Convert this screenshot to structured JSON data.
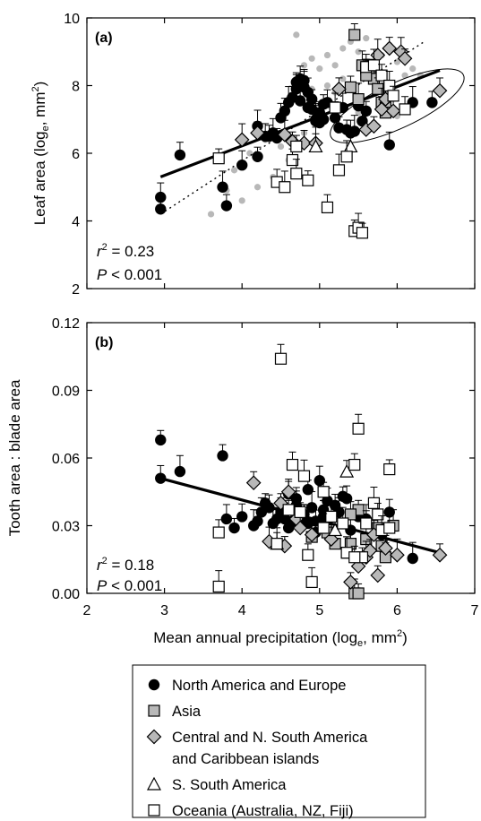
{
  "chart_data": [
    {
      "type": "scatter",
      "panel_label": "(a)",
      "ylabel": "Leaf area (log",
      "ylabel_sub": "e",
      "ylabel_unit": ", mm",
      "ylabel_sup": "2",
      "xlim": [
        2,
        7
      ],
      "ylim": [
        2,
        10
      ],
      "yticks": [
        "2",
        "4",
        "6",
        "8",
        "10"
      ],
      "stats": {
        "r_label": "r",
        "r_sup": "2",
        "r_value": " = 0.23",
        "p_label": "P",
        "p_value": " < 0.001"
      },
      "regression": {
        "x": [
          2.95,
          6.55
        ],
        "y": [
          5.3,
          8.45
        ]
      },
      "dotted_line": {
        "x": [
          2.95,
          6.35
        ],
        "y": [
          4.2,
          9.3
        ]
      },
      "ellipse": {
        "cx": 6.0,
        "cy": 7.4,
        "rx_data": 0.65,
        "ry_data": 1.2,
        "angle_deg": -25
      },
      "series": [
        {
          "name": "Background",
          "marker": "small-grey",
          "x": [
            3.6,
            3.9,
            4.1,
            4.3,
            4.5,
            4.6,
            4.7,
            4.8,
            4.9,
            5.0,
            5.1,
            5.2,
            5.3,
            5.4,
            5.5,
            5.6,
            5.7,
            5.8,
            5.9,
            6.0,
            6.1,
            6.2,
            4.4,
            4.6,
            4.8,
            5.0,
            5.2,
            5.5,
            5.7,
            5.9,
            4.2,
            4.5,
            4.9,
            5.3,
            5.8,
            6.0,
            4.0,
            3.8,
            4.7,
            5.1,
            5.6,
            6.3
          ],
          "y": [
            4.2,
            5.5,
            6.0,
            6.4,
            7.0,
            7.6,
            8.2,
            8.6,
            8.8,
            8.5,
            8.0,
            8.6,
            9.1,
            9.3,
            9.0,
            8.7,
            8.4,
            8.9,
            9.2,
            8.7,
            8.3,
            8.5,
            5.3,
            5.8,
            6.6,
            7.4,
            7.8,
            7.2,
            6.9,
            7.6,
            5.0,
            6.2,
            7.9,
            8.2,
            8.0,
            7.1,
            4.6,
            4.9,
            9.5,
            8.9,
            9.4,
            8.3
          ]
        },
        {
          "name": "North America and Europe",
          "marker": "circle",
          "x": [
            2.95,
            2.95,
            3.2,
            3.75,
            3.8,
            4.0,
            4.2,
            4.3,
            4.2,
            4.35,
            4.4,
            4.45,
            4.55,
            4.6,
            4.65,
            4.7,
            4.7,
            4.75,
            4.8,
            4.8,
            4.85,
            4.9,
            4.9,
            4.95,
            5.0,
            5.0,
            5.05,
            5.1,
            5.2,
            5.25,
            5.3,
            5.35,
            5.4,
            5.45,
            5.5,
            5.55,
            5.6,
            5.9,
            6.2,
            6.45,
            4.5,
            4.75,
            4.85,
            4.95,
            5.05
          ],
          "y": [
            4.7,
            4.35,
            5.95,
            5.0,
            4.45,
            5.65,
            5.9,
            6.5,
            6.8,
            6.5,
            6.6,
            6.45,
            7.25,
            7.5,
            7.65,
            7.9,
            8.1,
            8.2,
            7.95,
            8.15,
            7.8,
            7.6,
            7.3,
            7.0,
            7.2,
            6.9,
            7.45,
            7.5,
            7.05,
            6.75,
            7.35,
            6.7,
            6.6,
            6.65,
            7.4,
            6.95,
            7.25,
            6.25,
            7.5,
            7.5,
            7.05,
            7.55,
            7.35,
            6.95,
            7.0
          ]
        },
        {
          "name": "Asia",
          "marker": "square-grey",
          "x": [
            5.45,
            5.55,
            5.6,
            5.65,
            5.7,
            5.75,
            5.8,
            5.85,
            5.9,
            5.5,
            5.4,
            5.6,
            5.85
          ],
          "y": [
            9.5,
            8.6,
            8.5,
            8.4,
            8.2,
            7.9,
            7.5,
            7.35,
            7.7,
            7.6,
            7.95,
            8.3,
            7.2
          ]
        },
        {
          "name": "Central and N. South America and Caribbean islands",
          "marker": "diamond",
          "x": [
            4.0,
            4.2,
            4.55,
            4.65,
            4.8,
            4.95,
            5.25,
            5.6,
            5.7,
            5.8,
            5.85,
            5.95,
            6.05,
            6.1,
            6.55,
            5.75,
            5.9
          ],
          "y": [
            6.4,
            6.6,
            6.55,
            6.35,
            6.3,
            6.3,
            7.9,
            6.7,
            6.8,
            7.3,
            7.6,
            7.25,
            9.0,
            8.8,
            7.85,
            8.9,
            9.1
          ]
        },
        {
          "name": "S. South America",
          "marker": "triangle",
          "x": [
            4.95,
            5.4
          ],
          "y": [
            6.2,
            6.2
          ]
        },
        {
          "name": "Oceania (Australia, NZ, Fiji)",
          "marker": "square",
          "x": [
            3.7,
            4.45,
            4.55,
            4.65,
            4.7,
            4.85,
            5.1,
            5.25,
            5.45,
            5.5,
            5.55,
            5.6,
            5.7,
            5.8,
            5.9,
            5.95,
            6.1,
            5.35,
            4.7,
            5.2
          ],
          "y": [
            5.85,
            5.15,
            5.0,
            5.8,
            5.4,
            5.2,
            4.4,
            5.5,
            3.7,
            3.8,
            3.65,
            8.55,
            8.6,
            8.3,
            8.0,
            7.7,
            7.3,
            5.9,
            6.2,
            7.35
          ]
        }
      ]
    },
    {
      "type": "scatter",
      "panel_label": "(b)",
      "ylabel": "Tooth area : blade area",
      "xlabel": "Mean annual precipitation (log",
      "xlabel_sub": "e",
      "xlabel_unit": ", mm",
      "xlabel_sup": "2",
      "xlim": [
        2,
        7
      ],
      "ylim": [
        0,
        0.12
      ],
      "xticks": [
        "2",
        "3",
        "4",
        "5",
        "6",
        "7"
      ],
      "yticks": [
        "0.00",
        "0.03",
        "0.06",
        "0.09",
        "0.12"
      ],
      "stats": {
        "r_label": "r",
        "r_sup": "2",
        "r_value": " = 0.18",
        "p_label": "P",
        "p_value": " < 0.001"
      },
      "regression": {
        "x": [
          2.95,
          6.55
        ],
        "y": [
          0.051,
          0.018
        ]
      },
      "series": [
        {
          "name": "North America and Europe",
          "marker": "circle",
          "x": [
            2.95,
            2.95,
            3.2,
            3.75,
            3.8,
            3.9,
            4.0,
            4.15,
            4.2,
            4.25,
            4.3,
            4.35,
            4.4,
            4.45,
            4.5,
            4.55,
            4.6,
            4.65,
            4.7,
            4.75,
            4.8,
            4.85,
            4.9,
            4.95,
            5.0,
            5.05,
            5.1,
            5.15,
            5.2,
            5.25,
            5.3,
            5.35,
            5.4,
            5.5,
            5.6,
            5.8,
            5.9,
            6.2,
            4.6,
            4.7,
            4.85,
            4.95,
            5.05,
            4.65,
            4.8
          ],
          "y": [
            0.068,
            0.051,
            0.054,
            0.061,
            0.033,
            0.029,
            0.034,
            0.03,
            0.032,
            0.036,
            0.04,
            0.038,
            0.031,
            0.033,
            0.036,
            0.033,
            0.044,
            0.032,
            0.042,
            0.03,
            0.035,
            0.031,
            0.038,
            0.032,
            0.05,
            0.037,
            0.041,
            0.027,
            0.039,
            0.036,
            0.043,
            0.042,
            0.028,
            0.034,
            0.033,
            0.026,
            0.036,
            0.0155,
            0.029,
            0.039,
            0.046,
            0.027,
            0.034,
            0.037,
            0.033
          ]
        },
        {
          "name": "Asia",
          "marker": "square-grey",
          "x": [
            4.9,
            5.1,
            5.2,
            5.35,
            5.4,
            5.45,
            5.5,
            5.6,
            5.75,
            5.8,
            5.85,
            5.5,
            5.4,
            5.95
          ],
          "y": [
            0.025,
            0.027,
            0.022,
            0.018,
            0.022,
            0.0,
            0.0,
            0.024,
            0.029,
            0.021,
            0.016,
            0.037,
            0.035,
            0.03
          ]
        },
        {
          "name": "Central and N. South America and Caribbean islands",
          "marker": "diamond",
          "x": [
            4.15,
            4.35,
            4.55,
            4.6,
            4.7,
            4.9,
            5.15,
            5.4,
            5.5,
            5.6,
            5.65,
            5.7,
            5.75,
            5.85,
            6.0,
            6.55,
            4.75,
            4.5
          ],
          "y": [
            0.049,
            0.023,
            0.021,
            0.045,
            0.033,
            0.026,
            0.024,
            0.005,
            0.012,
            0.016,
            0.019,
            0.026,
            0.008,
            0.02,
            0.017,
            0.017,
            0.029,
            0.04
          ]
        },
        {
          "name": "S. South America",
          "marker": "triangle",
          "x": [
            4.45,
            5.35,
            5.2
          ],
          "y": [
            0.022,
            0.054,
            0.028
          ]
        },
        {
          "name": "Oceania (Australia, NZ, Fiji)",
          "marker": "square",
          "x": [
            3.7,
            3.7,
            4.45,
            4.5,
            4.6,
            4.65,
            4.8,
            4.85,
            4.9,
            5.05,
            5.15,
            5.35,
            5.45,
            5.5,
            5.55,
            5.6,
            5.7,
            5.75,
            5.8,
            5.9,
            5.9,
            5.3,
            5.45,
            5.05,
            4.75
          ],
          "y": [
            0.027,
            0.003,
            0.022,
            0.104,
            0.037,
            0.057,
            0.052,
            0.017,
            0.005,
            0.045,
            0.034,
            0.018,
            0.057,
            0.073,
            0.016,
            0.031,
            0.04,
            0.035,
            0.028,
            0.055,
            0.029,
            0.031,
            0.016,
            0.029,
            0.036
          ]
        }
      ]
    }
  ],
  "legend": {
    "items": [
      {
        "marker": "circle",
        "label": "North America and Europe"
      },
      {
        "marker": "square-grey",
        "label": "Asia"
      },
      {
        "marker": "diamond",
        "label": "Central and N. South America",
        "label2": "and Caribbean islands"
      },
      {
        "marker": "triangle",
        "label": "S. South America"
      },
      {
        "marker": "square",
        "label": "Oceania (Australia, NZ, Fiji)"
      }
    ]
  }
}
